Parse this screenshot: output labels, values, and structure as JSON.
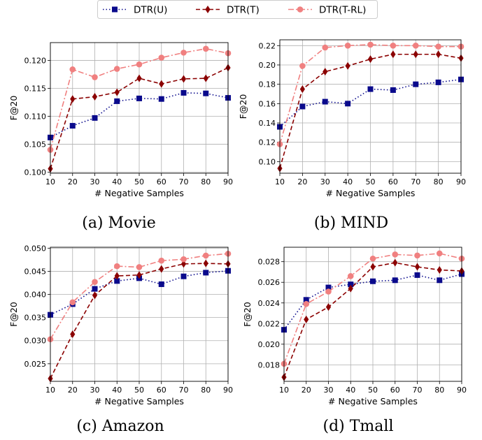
{
  "legend": {
    "entries": [
      {
        "label": "DTR(U)",
        "color": "#0a0a8c",
        "marker": "square",
        "dash": "dotted"
      },
      {
        "label": "DTR(T)",
        "color": "#8b0000",
        "marker": "diamond",
        "dash": "dashed"
      },
      {
        "label": "DTR(T-RL)",
        "color": "#f08080",
        "marker": "circle",
        "dash": "dashdot"
      }
    ]
  },
  "chart_data": [
    {
      "type": "line",
      "caption": "(a) Movie",
      "xlabel": "# Negative Samples",
      "ylabel": "F@20",
      "x": [
        10,
        20,
        30,
        40,
        50,
        60,
        70,
        80,
        90
      ],
      "xticks": [
        "10",
        "20",
        "30",
        "40",
        "50",
        "60",
        "70",
        "80",
        "90"
      ],
      "ylim": [
        0.0998,
        0.1232
      ],
      "yticks": [
        0.1,
        0.105,
        0.11,
        0.115,
        0.12
      ],
      "ytick_labels": [
        "0.100",
        "0.105",
        "0.110",
        "0.115",
        "0.120"
      ],
      "grid": true,
      "series": [
        {
          "name": "DTR(U)",
          "values": [
            0.1062,
            0.1083,
            0.1097,
            0.1127,
            0.1132,
            0.1131,
            0.1142,
            0.1141,
            0.1133
          ]
        },
        {
          "name": "DTR(T)",
          "values": [
            0.1006,
            0.1131,
            0.1135,
            0.1143,
            0.1168,
            0.1158,
            0.1167,
            0.1168,
            0.1187
          ]
        },
        {
          "name": "DTR(T-RL)",
          "values": [
            0.104,
            0.1184,
            0.117,
            0.1185,
            0.1193,
            0.1205,
            0.1214,
            0.1221,
            0.1213
          ]
        }
      ]
    },
    {
      "type": "line",
      "caption": "(b) MIND",
      "xlabel": "# Negative Samples",
      "ylabel": "F@20",
      "x": [
        10,
        20,
        30,
        40,
        50,
        60,
        70,
        80,
        90
      ],
      "xticks": [
        "10",
        "20",
        "30",
        "40",
        "50",
        "60",
        "70",
        "80",
        "90"
      ],
      "ylim": [
        0.088,
        0.226
      ],
      "yticks": [
        0.1,
        0.12,
        0.14,
        0.16,
        0.18,
        0.2,
        0.22
      ],
      "ytick_labels": [
        "0.10",
        "0.12",
        "0.14",
        "0.16",
        "0.18",
        "0.20",
        "0.22"
      ],
      "grid": true,
      "series": [
        {
          "name": "DTR(U)",
          "values": [
            0.136,
            0.157,
            0.162,
            0.16,
            0.175,
            0.174,
            0.18,
            0.182,
            0.185
          ]
        },
        {
          "name": "DTR(T)",
          "values": [
            0.093,
            0.175,
            0.193,
            0.199,
            0.206,
            0.211,
            0.211,
            0.211,
            0.207
          ]
        },
        {
          "name": "DTR(T-RL)",
          "values": [
            0.118,
            0.199,
            0.218,
            0.22,
            0.221,
            0.22,
            0.22,
            0.219,
            0.219
          ]
        }
      ]
    },
    {
      "type": "line",
      "caption": "(c) Amazon",
      "xlabel": "# Negative Samples",
      "ylabel": "F@20",
      "x": [
        10,
        20,
        30,
        40,
        50,
        60,
        70,
        80,
        90
      ],
      "xticks": [
        "10",
        "20",
        "30",
        "40",
        "50",
        "60",
        "70",
        "80",
        "90"
      ],
      "ylim": [
        0.0212,
        0.0502
      ],
      "yticks": [
        0.025,
        0.03,
        0.035,
        0.04,
        0.045,
        0.05
      ],
      "ytick_labels": [
        "0.025",
        "0.030",
        "0.035",
        "0.040",
        "0.045",
        "0.050"
      ],
      "grid": true,
      "series": [
        {
          "name": "DTR(U)",
          "values": [
            0.0356,
            0.0379,
            0.0412,
            0.0429,
            0.0435,
            0.0422,
            0.0439,
            0.0447,
            0.0451
          ]
        },
        {
          "name": "DTR(T)",
          "values": [
            0.0218,
            0.0314,
            0.0398,
            0.044,
            0.0442,
            0.0455,
            0.0466,
            0.0467,
            0.0466
          ]
        },
        {
          "name": "DTR(T-RL)",
          "values": [
            0.0303,
            0.0383,
            0.0427,
            0.0461,
            0.0459,
            0.0473,
            0.0476,
            0.0484,
            0.0488
          ]
        }
      ]
    },
    {
      "type": "line",
      "caption": "(d) Tmall",
      "xlabel": "# Negative Samples",
      "ylabel": "F@20",
      "x": [
        10,
        20,
        30,
        40,
        50,
        60,
        70,
        80,
        90
      ],
      "xticks": [
        "10",
        "20",
        "30",
        "40",
        "50",
        "60",
        "70",
        "80",
        "90"
      ],
      "ylim": [
        0.0164,
        0.0294
      ],
      "yticks": [
        0.018,
        0.02,
        0.022,
        0.024,
        0.026,
        0.028
      ],
      "ytick_labels": [
        "0.018",
        "0.020",
        "0.022",
        "0.024",
        "0.026",
        "0.028"
      ],
      "grid": true,
      "series": [
        {
          "name": "DTR(U)",
          "values": [
            0.0214,
            0.0243,
            0.0255,
            0.0258,
            0.0261,
            0.0262,
            0.0267,
            0.0262,
            0.0268
          ]
        },
        {
          "name": "DTR(T)",
          "values": [
            0.0168,
            0.0224,
            0.0236,
            0.0254,
            0.0275,
            0.0279,
            0.0275,
            0.0272,
            0.0271
          ]
        },
        {
          "name": "DTR(T-RL)",
          "values": [
            0.0181,
            0.0239,
            0.0251,
            0.0266,
            0.0283,
            0.0287,
            0.0286,
            0.0288,
            0.0283
          ]
        }
      ]
    }
  ]
}
